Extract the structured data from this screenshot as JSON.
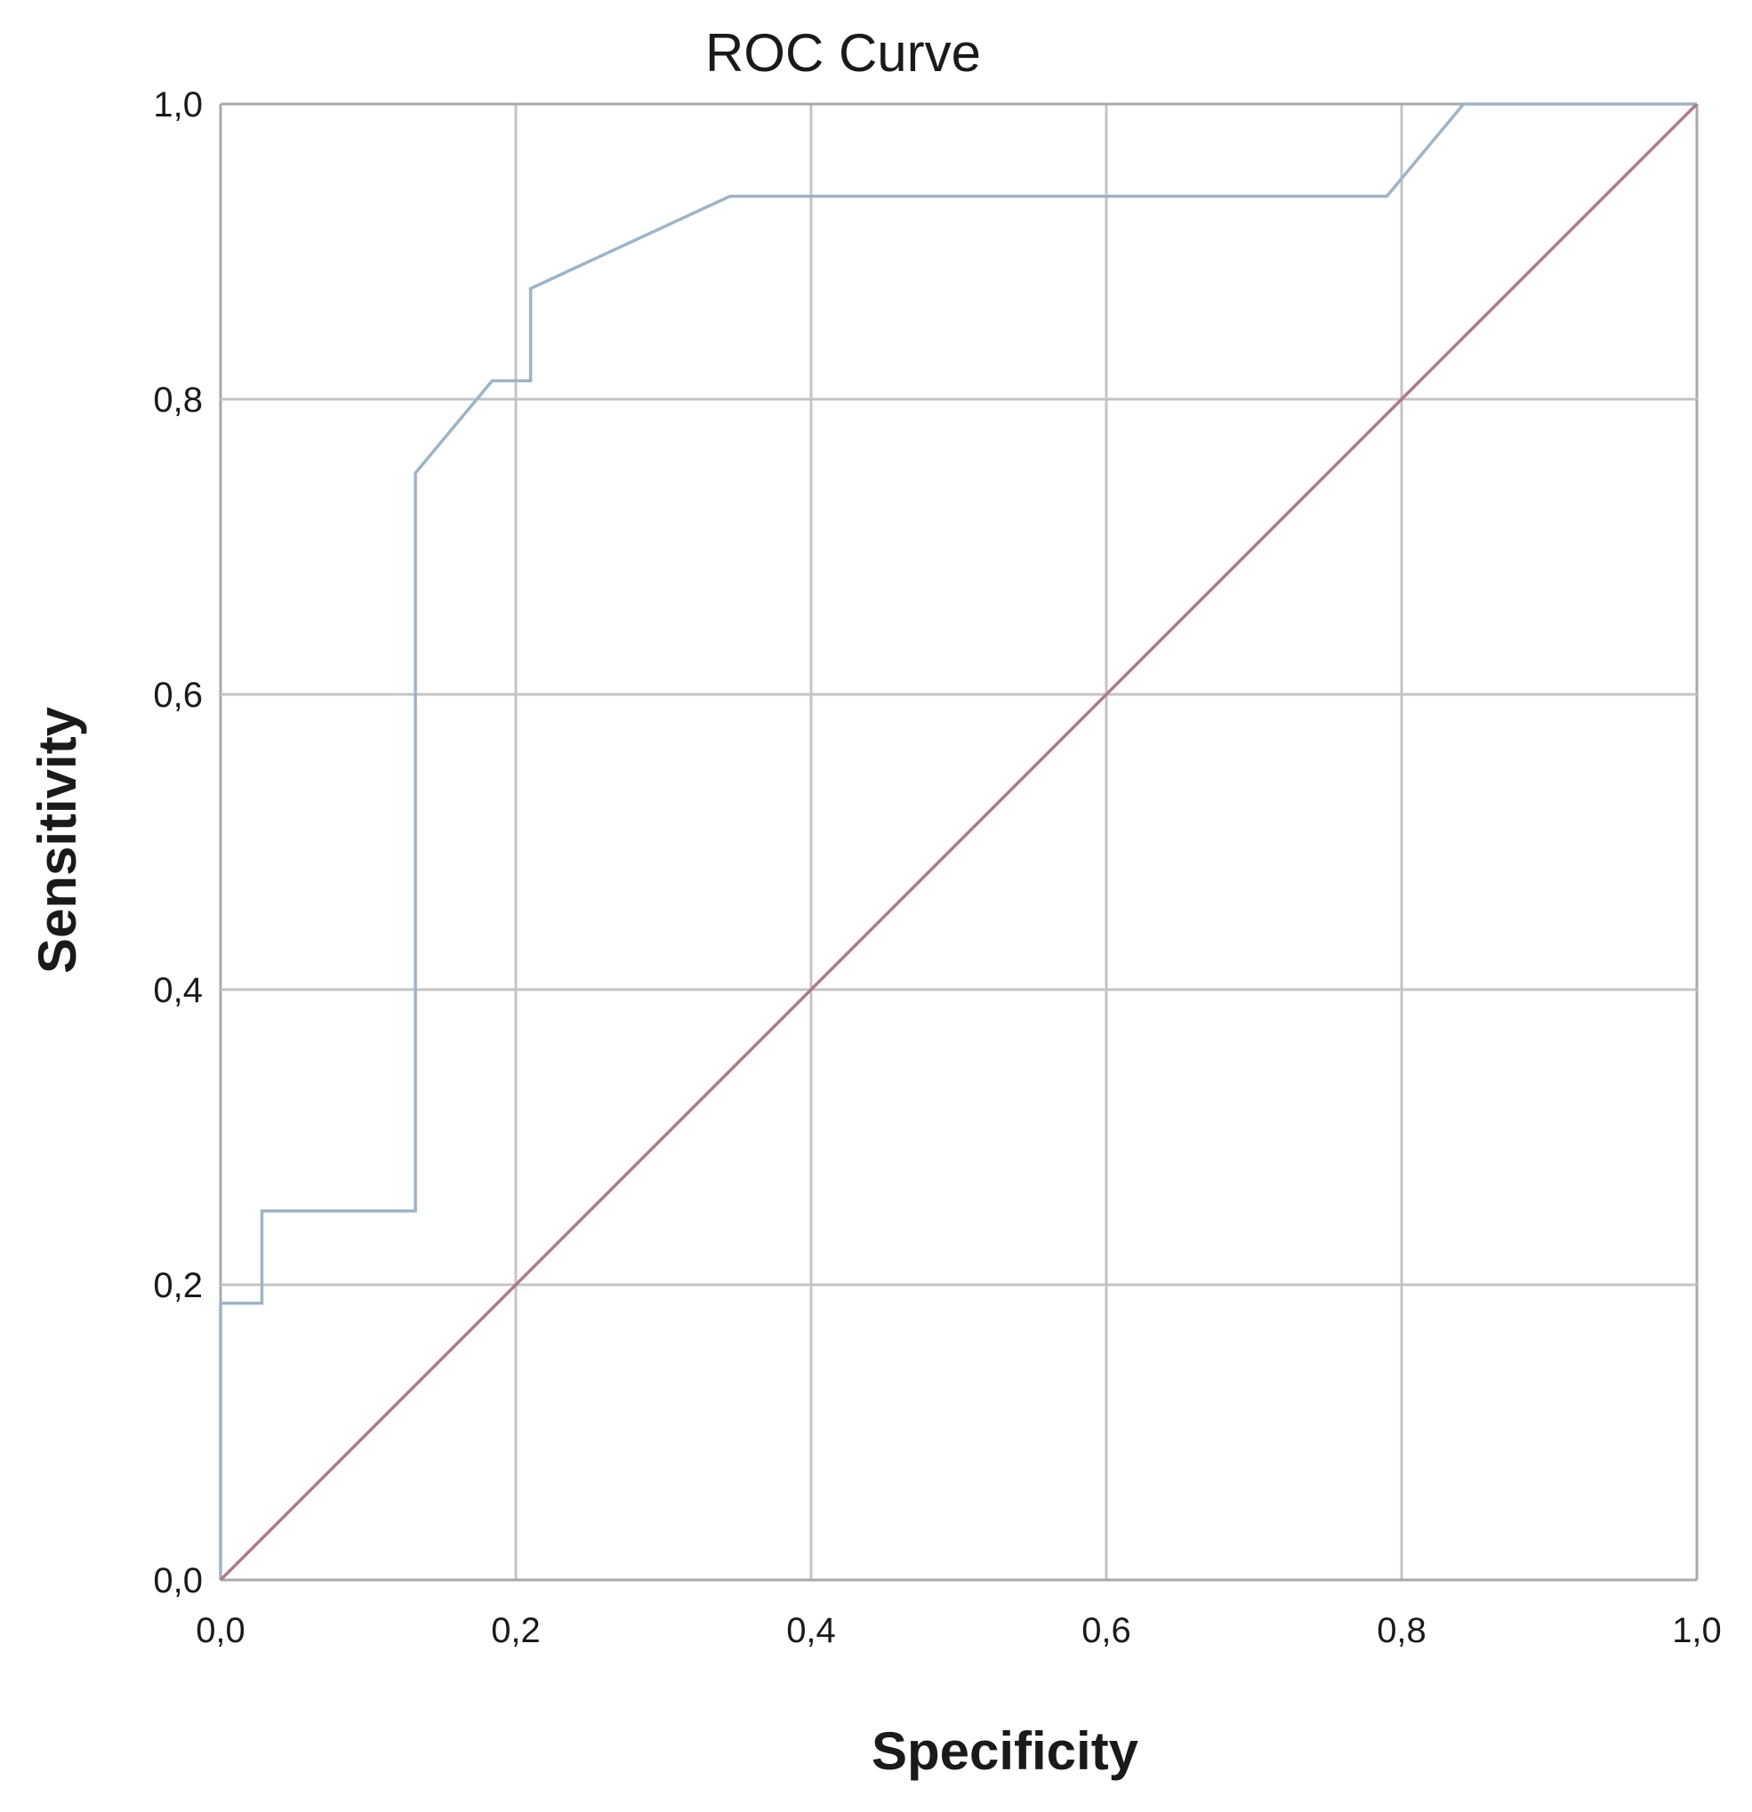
{
  "chart_data": {
    "type": "line",
    "title": "ROC Curve",
    "xlabel": "Specificity",
    "ylabel": "Sensitivity",
    "xlim": [
      0,
      1
    ],
    "ylim": [
      0,
      1
    ],
    "x_ticks": [
      "0,0",
      "0,2",
      "0,4",
      "0,6",
      "0,8",
      "1,0"
    ],
    "y_ticks": [
      "0,0",
      "0,2",
      "0,4",
      "0,6",
      "0,8",
      "1,0"
    ],
    "grid": true,
    "legend": "none",
    "series": [
      {
        "color": "#9fb4c6",
        "x": [
          0.0,
          0.0,
          0.028,
          0.028,
          0.132,
          0.132,
          0.184,
          0.21,
          0.21,
          0.345,
          0.79,
          0.842,
          1.0
        ],
        "y": [
          0.0,
          0.1875,
          0.1875,
          0.25,
          0.25,
          0.75,
          0.8125,
          0.8125,
          0.875,
          0.9375,
          0.9375,
          1.0,
          1.0
        ]
      },
      {
        "color": "#b07a87",
        "x": [
          0.0,
          1.0
        ],
        "y": [
          0.0,
          1.0
        ]
      }
    ]
  }
}
